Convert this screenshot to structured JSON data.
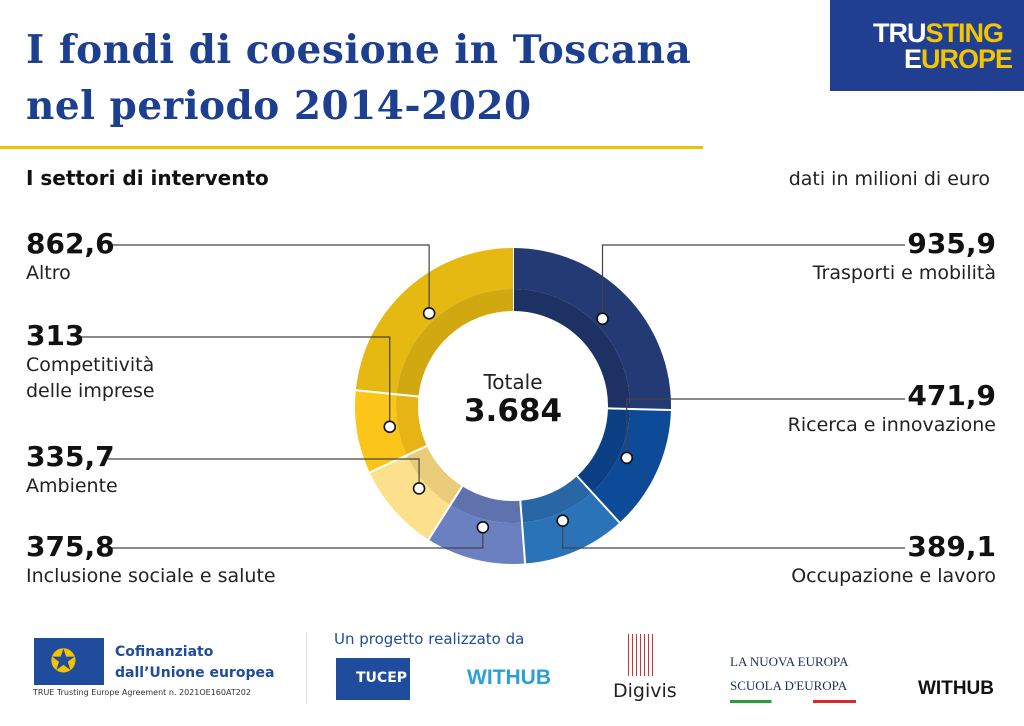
{
  "header": {
    "title_line1": "I fondi di coesione in Toscana",
    "title_line2": "nel periodo 2014-2020",
    "logo_line1_a": "TRU",
    "logo_line1_b": "STING",
    "logo_line2_a": "E",
    "logo_line2_b": "UROPE"
  },
  "subtitle": "I settori di intervento",
  "unit_note": "dati in milioni di euro",
  "center": {
    "label": "Totale",
    "value": "3.684"
  },
  "chart_data": {
    "type": "pie",
    "variant": "donut",
    "title": "I settori di intervento",
    "unit": "milioni di euro",
    "total": 3684,
    "order": "clockwise from top",
    "slices": [
      {
        "name": "Trasporti e mobilità",
        "value": 935.9,
        "value_label": "935,9",
        "color": "#233a74",
        "shade": "#1d3164",
        "side": "right"
      },
      {
        "name": "Ricerca e innovazione",
        "value": 471.9,
        "value_label": "471,9",
        "color": "#0d4a98",
        "shade": "#0a3f84",
        "side": "right"
      },
      {
        "name": "Occupazione e lavoro",
        "value": 389.1,
        "value_label": "389,1",
        "color": "#2a73b8",
        "shade": "#2966a6",
        "side": "right"
      },
      {
        "name": "Inclusione sociale e salute",
        "value": 375.8,
        "value_label": "375,8",
        "color": "#6b80c0",
        "shade": "#5f72ae",
        "side": "left"
      },
      {
        "name": "Ambiente",
        "value": 335.7,
        "value_label": "335,7",
        "color": "#fde08c",
        "shade": "#e9cb7a",
        "side": "left"
      },
      {
        "name": "Competitività delle imprese",
        "value": 313,
        "value_label": "313",
        "color": "#fcc51a",
        "shade": "#e6b414",
        "side": "left"
      },
      {
        "name": "Altro",
        "value": 862.6,
        "value_label": "862,6",
        "color": "#e5b912",
        "shade": "#d1a80f",
        "side": "left"
      }
    ]
  },
  "labels": {
    "comp_line1": "Competitività",
    "comp_line2": "delle imprese"
  },
  "footer": {
    "cofin_line1": "Cofinanziato",
    "cofin_line2": "dall’Unione europea",
    "agreement": "TRUE Trusting Europe Agreement n. 2021OE160AT202",
    "project": "Un progetto realizzato da",
    "tucep": "TUCEP",
    "withub": "WITHUB",
    "digivis": "Digivis",
    "lne1": "LA NUOVA EUROPA",
    "lne2": "SCUOLA D'EUROPA",
    "withub2": "WITHUB"
  }
}
